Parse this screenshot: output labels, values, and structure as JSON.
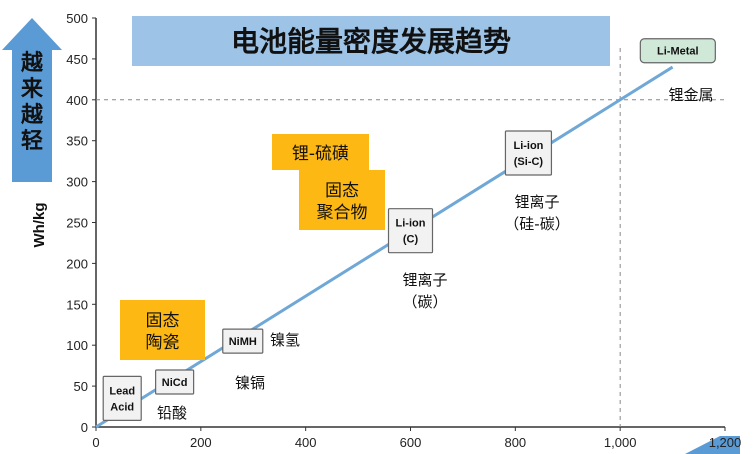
{
  "chart_data": {
    "type": "line",
    "title": "电池能量密度发展趋势",
    "ylabel": "Wh/kg",
    "xlabel": "",
    "y_arrow_label": "越来越轻",
    "xlim": [
      0,
      1200
    ],
    "ylim": [
      0,
      500
    ],
    "x_ticks": [
      0,
      200,
      400,
      600,
      800,
      1000,
      1200
    ],
    "x_tick_labels": [
      "0",
      "200",
      "400",
      "600",
      "800",
      "1,000",
      "1,200"
    ],
    "y_ticks": [
      0,
      50,
      100,
      150,
      200,
      250,
      300,
      350,
      400,
      450,
      500
    ],
    "y_tick_labels": [
      "0",
      "50",
      "100",
      "150",
      "200",
      "250",
      "300",
      "350",
      "400",
      "450",
      "500"
    ],
    "trend_line": {
      "x": [
        0,
        1100
      ],
      "y": [
        0,
        440
      ]
    },
    "reference": {
      "x": 1000,
      "y": 400
    },
    "points": [
      {
        "label": "Lead Acid",
        "label_lines": [
          "Lead",
          "Acid"
        ],
        "x": 50,
        "y": 35,
        "cn": "铅酸",
        "color": "#f2f2f2"
      },
      {
        "label": "NiCd",
        "label_lines": [
          "NiCd"
        ],
        "x": 150,
        "y": 55,
        "cn": "镍镉",
        "color": "#f2f2f2"
      },
      {
        "label": "NiMH",
        "label_lines": [
          "NiMH"
        ],
        "x": 280,
        "y": 105,
        "cn": "镍氢",
        "color": "#f2f2f2"
      },
      {
        "label": "Li-ion (C)",
        "label_lines": [
          "Li-ion",
          "(C)"
        ],
        "x": 600,
        "y": 240,
        "cn": "锂离子\n（碳）",
        "color": "#f2f2f2"
      },
      {
        "label": "Li-ion (Si-C)",
        "label_lines": [
          "Li-ion",
          "(Si-C)"
        ],
        "x": 825,
        "y": 335,
        "cn": "锂离子\n（硅-碳）",
        "color": "#f2f2f2"
      },
      {
        "label": "Li-Metal",
        "label_lines": [
          "Li-Metal"
        ],
        "x": 1110,
        "y": 460,
        "cn": "锂金属",
        "color": "#cfe8d8"
      }
    ],
    "highlights": [
      {
        "text": "锂-硫磺",
        "lines": [
          "锂-硫磺"
        ],
        "color": "#fdb813"
      },
      {
        "text": "固态聚合物",
        "lines": [
          "固态",
          "聚合物"
        ],
        "color": "#fdb813"
      },
      {
        "text": "固态陶瓷",
        "lines": [
          "固态",
          "陶瓷"
        ],
        "color": "#fdb813"
      }
    ],
    "colors": {
      "title_bg": "#9dc3e6",
      "arrow": "#5b9bd5",
      "line": "#6fa8d6",
      "grid_dash": "#888888"
    }
  }
}
